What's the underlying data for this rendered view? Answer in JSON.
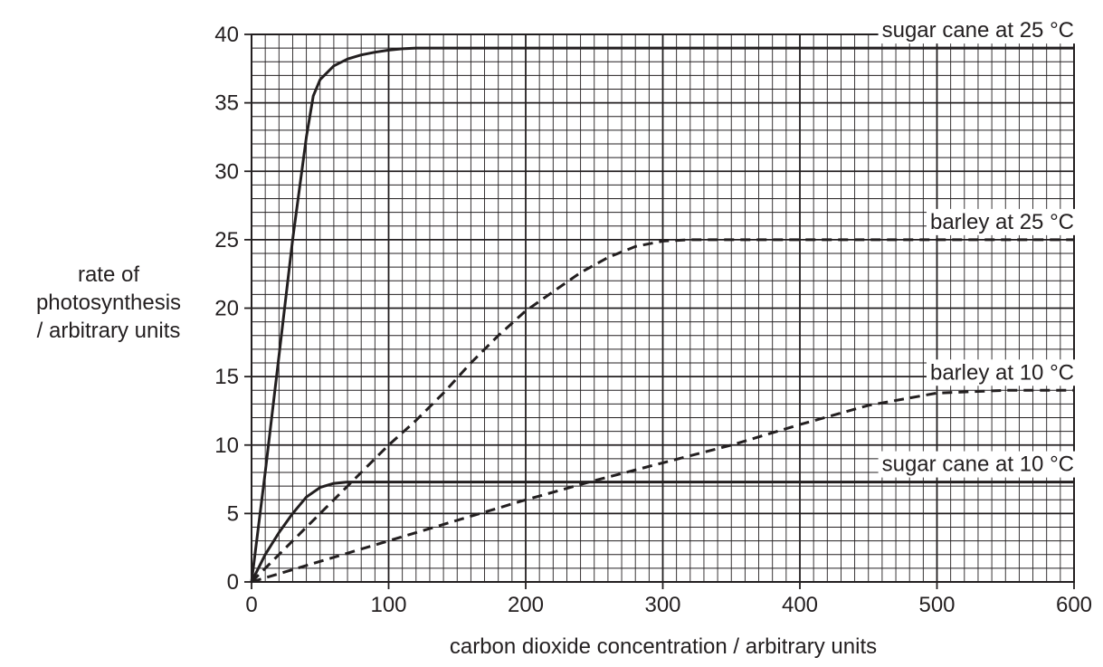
{
  "chart_data": {
    "type": "line",
    "xlabel": "carbon dioxide concentration / arbitrary units",
    "ylabel": [
      "rate of",
      "photosynthesis",
      "/ arbitrary units"
    ],
    "xlim": [
      0,
      600
    ],
    "ylim": [
      0,
      40
    ],
    "x_ticks": [
      0,
      100,
      200,
      300,
      400,
      500,
      600
    ],
    "y_ticks": [
      0,
      5,
      10,
      15,
      20,
      25,
      30,
      35,
      40
    ],
    "grid": {
      "major": true,
      "minor": true,
      "minor_x_step": 10,
      "minor_y_step": 1
    },
    "series": [
      {
        "name": "sugar cane at 25 °C",
        "style": "solid",
        "color": "#231f20",
        "x": [
          0,
          10,
          20,
          30,
          40,
          45,
          50,
          60,
          70,
          80,
          90,
          100,
          110,
          120,
          200,
          300,
          400,
          500,
          600
        ],
        "y": [
          0,
          8,
          16.5,
          25,
          32.5,
          35.5,
          36.7,
          37.7,
          38.2,
          38.5,
          38.7,
          38.85,
          38.95,
          39,
          39,
          39,
          39,
          39,
          39
        ]
      },
      {
        "name": "barley at 25 °C",
        "style": "dashed",
        "color": "#231f20",
        "x": [
          0,
          20,
          40,
          60,
          80,
          100,
          120,
          140,
          160,
          180,
          200,
          220,
          240,
          260,
          280,
          300,
          320,
          340,
          400,
          500,
          600
        ],
        "y": [
          0,
          2,
          4,
          6,
          8,
          10,
          11.8,
          13.8,
          16,
          18,
          19.8,
          21.2,
          22.6,
          23.7,
          24.5,
          24.9,
          25,
          25,
          25,
          25,
          25
        ]
      },
      {
        "name": "barley at 10 °C",
        "style": "dashed",
        "color": "#231f20",
        "x": [
          0,
          50,
          100,
          150,
          200,
          250,
          300,
          350,
          400,
          450,
          500,
          550,
          600
        ],
        "y": [
          0,
          1.5,
          3,
          4.5,
          6,
          7.4,
          8.7,
          10,
          11.5,
          12.9,
          13.8,
          14,
          14
        ]
      },
      {
        "name": "sugar cane at 10 °C",
        "style": "solid",
        "color": "#231f20",
        "x": [
          0,
          10,
          20,
          30,
          40,
          50,
          60,
          70,
          100,
          200,
          300,
          400,
          500,
          600
        ],
        "y": [
          0,
          2,
          3.6,
          5,
          6.2,
          6.9,
          7.2,
          7.3,
          7.3,
          7.3,
          7.3,
          7.3,
          7.3,
          7.3
        ]
      }
    ],
    "annotations": [
      {
        "text": "sugar cane at 25 °C",
        "series": 0
      },
      {
        "text": "barley at 25 °C",
        "series": 1
      },
      {
        "text": "barley at 10 °C",
        "series": 2
      },
      {
        "text": "sugar cane at 10 °C",
        "series": 3
      }
    ]
  }
}
